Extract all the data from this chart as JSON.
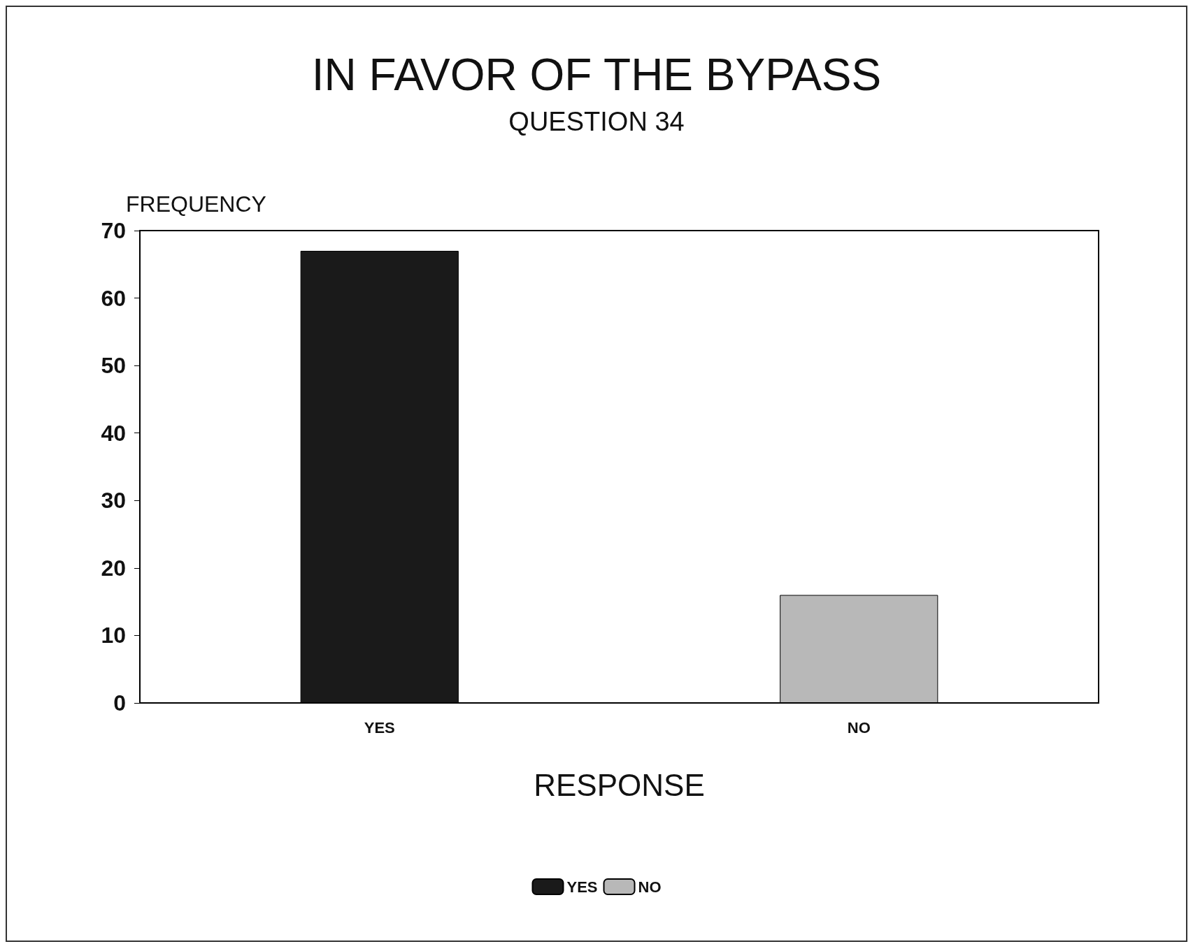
{
  "chart_data": {
    "type": "bar",
    "title": "IN FAVOR OF THE BYPASS",
    "subtitle": "QUESTION 34",
    "xlabel": "RESPONSE",
    "ylabel": "FREQUENCY",
    "categories": [
      "YES",
      "NO"
    ],
    "series": [
      {
        "name": "YES",
        "color": "#1a1a1a",
        "values": [
          67,
          null
        ]
      },
      {
        "name": "NO",
        "color": "#b8b8b8",
        "values": [
          null,
          16
        ]
      }
    ],
    "ylim": [
      0,
      70
    ],
    "yticks": [
      0,
      10,
      20,
      30,
      40,
      50,
      60,
      70
    ],
    "grid": false,
    "legend": "bottom"
  }
}
